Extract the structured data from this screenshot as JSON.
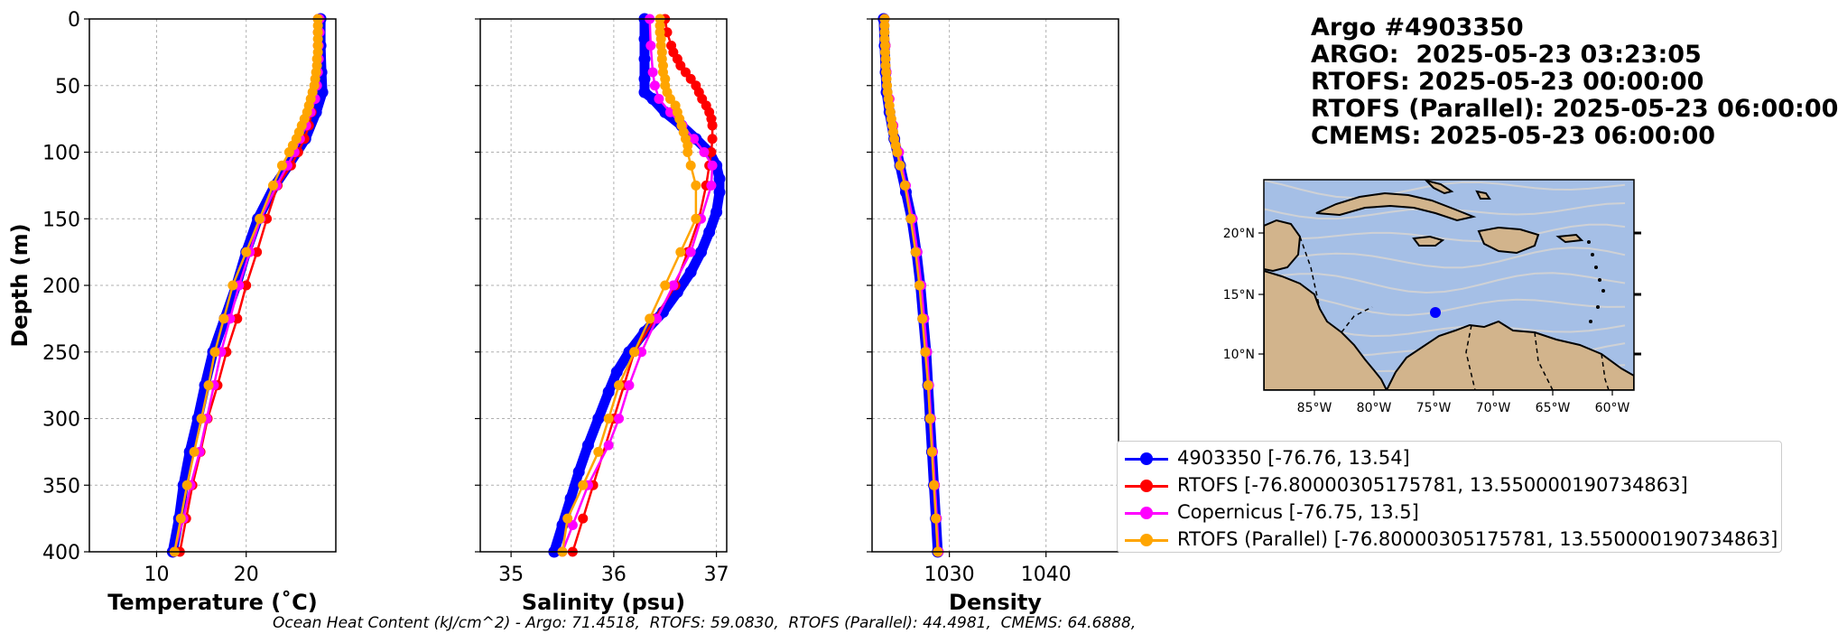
{
  "title_block": {
    "lines": [
      "Argo #4903350",
      "ARGO:  2025-05-23 03:23:05",
      "RTOFS: 2025-05-23 00:00:00",
      "RTOFS (Parallel): 2025-05-23 06:00:00",
      "CMEMS: 2025-05-23 06:00:00"
    ]
  },
  "footer": "Ocean Heat Content (kJ/cm^2) - Argo: 71.4518,  RTOFS: 59.0830,  RTOFS (Parallel): 44.4981,  CMEMS: 64.6888,",
  "colors": {
    "argo": "#0000ff",
    "rtofs": "#ff0000",
    "copernicus": "#ff00ff",
    "parallel": "#ffa500"
  },
  "legend": [
    {
      "label": "4903350 [-76.76, 13.54]",
      "color": "#0000ff"
    },
    {
      "label": "RTOFS [-76.80000305175781, 13.550000190734863]",
      "color": "#ff0000"
    },
    {
      "label": "Copernicus [-76.75, 13.5]",
      "color": "#ff00ff"
    },
    {
      "label": "RTOFS (Parallel) [-76.80000305175781, 13.550000190734863]",
      "color": "#ffa500"
    }
  ],
  "chart_data": [
    {
      "type": "line",
      "xlabel": "Temperature (˚C)",
      "ylabel": "Depth (m)",
      "xlim": [
        2.5,
        30
      ],
      "ylim": [
        400,
        0
      ],
      "xticks": [
        10,
        20
      ],
      "yticks": [
        0,
        50,
        100,
        150,
        200,
        250,
        300,
        350,
        400
      ],
      "grid": true,
      "series": [
        {
          "name": "4903350",
          "color": "#0000ff",
          "thick": true,
          "depth": [
            0,
            20,
            40,
            55,
            70,
            90,
            110,
            125,
            150,
            175,
            200,
            225,
            250,
            275,
            300,
            325,
            350,
            375,
            400
          ],
          "values": [
            28.3,
            28.3,
            28.4,
            28.5,
            27.8,
            26.6,
            24.7,
            23.2,
            21.3,
            20.0,
            18.9,
            17.6,
            16.3,
            15.4,
            14.6,
            13.7,
            13.0,
            12.5,
            11.8
          ]
        },
        {
          "name": "RTOFS",
          "color": "#ff0000",
          "markers": true,
          "depth": [
            0,
            10,
            20,
            30,
            40,
            50,
            60,
            70,
            80,
            90,
            100,
            110,
            125,
            150,
            175,
            200,
            225,
            250,
            275,
            300,
            325,
            350,
            375,
            400
          ],
          "values": [
            28.0,
            28.0,
            28.0,
            28.0,
            28.0,
            27.8,
            27.6,
            27.3,
            27.0,
            26.5,
            25.8,
            25.0,
            23.5,
            22.3,
            21.2,
            20.0,
            19.0,
            17.8,
            16.8,
            15.7,
            14.9,
            14.0,
            13.3,
            12.6
          ]
        },
        {
          "name": "Copernicus",
          "color": "#ff00ff",
          "markers": true,
          "depth": [
            0,
            10,
            20,
            30,
            40,
            50,
            60,
            70,
            80,
            90,
            100,
            110,
            125,
            150,
            175,
            200,
            225,
            250,
            275,
            300,
            325,
            350,
            375,
            400
          ],
          "values": [
            28.2,
            28.2,
            28.1,
            28.1,
            28.0,
            27.9,
            27.7,
            27.2,
            26.7,
            26.0,
            25.4,
            24.6,
            23.4,
            21.6,
            20.4,
            19.2,
            18.2,
            17.2,
            16.4,
            15.6,
            14.8,
            13.8,
            13.0,
            12.0
          ]
        },
        {
          "name": "RTOFS (Parallel)",
          "color": "#ffa500",
          "markers": true,
          "depth": [
            0,
            5,
            10,
            15,
            20,
            25,
            30,
            35,
            40,
            45,
            50,
            55,
            60,
            65,
            70,
            75,
            80,
            85,
            90,
            95,
            100,
            110,
            125,
            150,
            175,
            200,
            225,
            250,
            275,
            300,
            325,
            350,
            375,
            400
          ],
          "values": [
            28.0,
            28.0,
            28.0,
            28.0,
            28.0,
            28.0,
            27.9,
            27.9,
            27.8,
            27.7,
            27.6,
            27.4,
            27.2,
            27.0,
            26.8,
            26.5,
            26.2,
            25.9,
            25.6,
            25.2,
            24.8,
            24.0,
            23.0,
            21.5,
            20.0,
            18.5,
            17.5,
            16.5,
            15.8,
            15.0,
            14.2,
            13.4,
            12.7,
            12.0
          ]
        }
      ]
    },
    {
      "type": "line",
      "xlabel": "Salinity (psu)",
      "ylabel": "",
      "xlim": [
        34.7,
        37.1
      ],
      "ylim": [
        400,
        0
      ],
      "xticks": [
        35,
        36,
        37
      ],
      "yticks": [
        0,
        50,
        100,
        150,
        200,
        250,
        300,
        350,
        400
      ],
      "grid": true,
      "series": [
        {
          "name": "4903350",
          "color": "#0000ff",
          "thick": true,
          "depth": [
            0,
            15,
            30,
            45,
            55,
            60,
            70,
            80,
            90,
            100,
            110,
            120,
            130,
            145,
            160,
            175,
            190,
            205,
            220,
            235,
            250,
            265,
            280,
            300,
            320,
            340,
            360,
            380,
            400
          ],
          "values": [
            36.3,
            36.3,
            36.3,
            36.3,
            36.3,
            36.38,
            36.5,
            36.66,
            36.8,
            36.93,
            37.0,
            37.03,
            37.03,
            37.0,
            36.93,
            36.85,
            36.75,
            36.62,
            36.48,
            36.3,
            36.15,
            36.03,
            35.95,
            35.85,
            35.75,
            35.66,
            35.58,
            35.5,
            35.42
          ]
        },
        {
          "name": "RTOFS",
          "color": "#ff0000",
          "markers": true,
          "depth": [
            0,
            10,
            20,
            25,
            30,
            35,
            40,
            45,
            50,
            55,
            60,
            65,
            70,
            75,
            80,
            90,
            100,
            110,
            125,
            150,
            175,
            200,
            225,
            250,
            275,
            300,
            350,
            375,
            400
          ],
          "values": [
            36.5,
            36.52,
            36.56,
            36.58,
            36.62,
            36.65,
            36.7,
            36.75,
            36.8,
            36.83,
            36.86,
            36.9,
            36.93,
            36.95,
            36.96,
            36.96,
            36.95,
            36.93,
            36.9,
            36.83,
            36.72,
            36.6,
            36.4,
            36.2,
            36.1,
            36.0,
            35.8,
            35.7,
            35.6
          ]
        },
        {
          "name": "Copernicus",
          "color": "#ff00ff",
          "markers": true,
          "depth": [
            0,
            20,
            40,
            50,
            60,
            70,
            80,
            90,
            100,
            110,
            125,
            150,
            175,
            200,
            225,
            250,
            275,
            300,
            320,
            350,
            380,
            400
          ],
          "values": [
            36.35,
            36.36,
            36.38,
            36.4,
            36.44,
            36.55,
            36.67,
            36.78,
            36.88,
            36.96,
            36.95,
            36.85,
            36.75,
            36.58,
            36.42,
            36.27,
            36.15,
            36.05,
            35.95,
            35.75,
            35.6,
            35.5
          ]
        },
        {
          "name": "RTOFS (Parallel)",
          "color": "#ffa500",
          "markers": true,
          "depth": [
            0,
            5,
            10,
            15,
            20,
            25,
            30,
            35,
            40,
            45,
            50,
            55,
            60,
            65,
            70,
            75,
            80,
            85,
            90,
            95,
            100,
            110,
            125,
            150,
            175,
            200,
            225,
            250,
            275,
            300,
            325,
            350,
            375,
            400
          ],
          "values": [
            36.45,
            36.45,
            36.45,
            36.46,
            36.46,
            36.47,
            36.47,
            36.48,
            36.48,
            36.5,
            36.5,
            36.52,
            36.55,
            36.6,
            36.62,
            36.64,
            36.66,
            36.68,
            36.7,
            36.72,
            36.72,
            36.75,
            36.8,
            36.8,
            36.65,
            36.5,
            36.35,
            36.2,
            36.05,
            35.95,
            35.85,
            35.7,
            35.55,
            35.5
          ]
        }
      ]
    },
    {
      "type": "line",
      "xlabel": "Density",
      "ylabel": "",
      "xlim": [
        1022,
        1047.5
      ],
      "ylim": [
        400,
        0
      ],
      "xticks": [
        1030,
        1040
      ],
      "yticks": [
        0,
        50,
        100,
        150,
        200,
        250,
        300,
        350,
        400
      ],
      "grid": true,
      "series": [
        {
          "name": "4903350",
          "color": "#0000ff",
          "thick": true,
          "depth": [
            0,
            20,
            40,
            55,
            70,
            90,
            110,
            130,
            150,
            175,
            200,
            225,
            250,
            275,
            300,
            325,
            350,
            375,
            400
          ],
          "values": [
            1023.2,
            1023.3,
            1023.4,
            1023.5,
            1023.8,
            1024.3,
            1024.9,
            1025.5,
            1026.1,
            1026.6,
            1027.0,
            1027.3,
            1027.6,
            1027.8,
            1028.0,
            1028.2,
            1028.4,
            1028.6,
            1028.8
          ]
        },
        {
          "name": "RTOFS",
          "color": "#ff0000",
          "markers": true,
          "depth": [
            0,
            20,
            40,
            60,
            80,
            100,
            125,
            150,
            175,
            200,
            225,
            250,
            275,
            300,
            325,
            350,
            375,
            400
          ],
          "values": [
            1023.3,
            1023.4,
            1023.5,
            1023.8,
            1024.2,
            1024.7,
            1025.4,
            1026.1,
            1026.6,
            1027.0,
            1027.3,
            1027.6,
            1027.8,
            1028.0,
            1028.2,
            1028.4,
            1028.6,
            1028.8
          ]
        },
        {
          "name": "Copernicus",
          "color": "#ff00ff",
          "markers": true,
          "depth": [
            0,
            20,
            40,
            60,
            80,
            100,
            125,
            150,
            175,
            200,
            225,
            250,
            275,
            300,
            325,
            350,
            375,
            400
          ],
          "values": [
            1023.3,
            1023.4,
            1023.5,
            1023.8,
            1024.2,
            1024.8,
            1025.5,
            1026.2,
            1026.7,
            1027.1,
            1027.4,
            1027.7,
            1027.9,
            1028.1,
            1028.3,
            1028.5,
            1028.7,
            1028.9
          ]
        },
        {
          "name": "RTOFS (Parallel)",
          "color": "#ffa500",
          "markers": true,
          "depth": [
            0,
            5,
            10,
            15,
            20,
            25,
            30,
            35,
            40,
            45,
            50,
            55,
            60,
            65,
            70,
            75,
            80,
            85,
            90,
            95,
            100,
            110,
            125,
            150,
            175,
            200,
            225,
            250,
            275,
            300,
            325,
            350,
            375,
            400
          ],
          "values": [
            1023.3,
            1023.3,
            1023.3,
            1023.3,
            1023.35,
            1023.35,
            1023.4,
            1023.4,
            1023.45,
            1023.5,
            1023.55,
            1023.6,
            1023.7,
            1023.8,
            1023.9,
            1024.0,
            1024.1,
            1024.2,
            1024.3,
            1024.45,
            1024.6,
            1024.9,
            1025.4,
            1026.0,
            1026.5,
            1026.9,
            1027.2,
            1027.5,
            1027.8,
            1028.0,
            1028.2,
            1028.4,
            1028.6,
            1028.8
          ]
        }
      ]
    }
  ],
  "map": {
    "lon_ticks": [
      "85°W",
      "80°W",
      "75°W",
      "70°W",
      "65°W",
      "60°W"
    ],
    "lat_ticks": [
      "20°N",
      "15°N",
      "10°N"
    ],
    "ocean_color": "#a5bfe6",
    "land_color": "#d2b48c",
    "stream_color": "#d4d4d4",
    "marker_color": "#0000ff"
  }
}
